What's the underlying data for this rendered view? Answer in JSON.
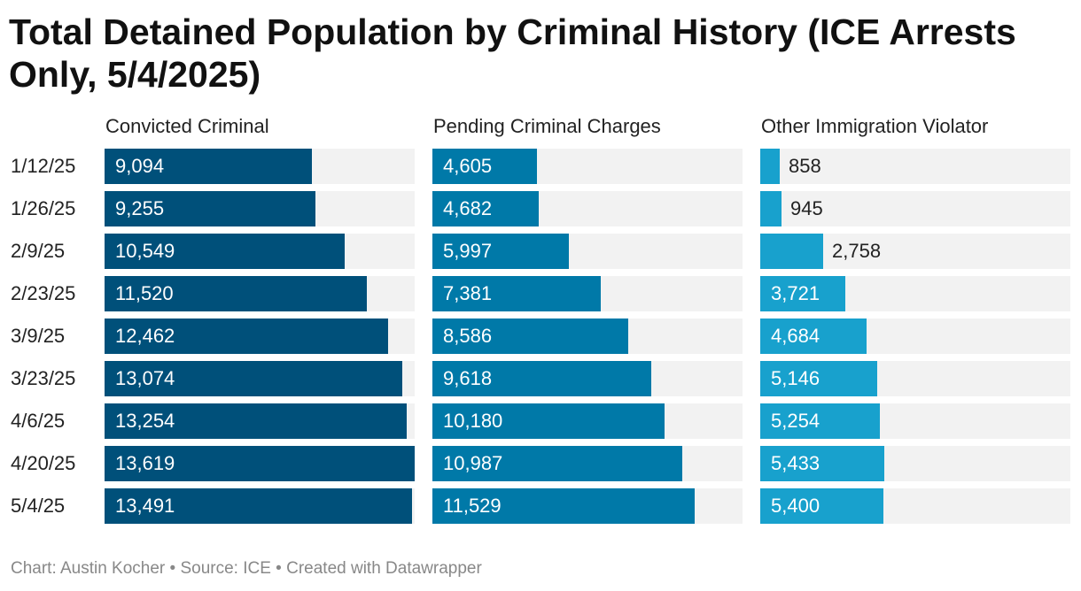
{
  "chart_data": {
    "type": "bar",
    "title": "Total Detained Population by Criminal History (ICE Arrests Only, 5/4/2025)",
    "orientation": "horizontal",
    "categories": [
      "1/12/25",
      "1/26/25",
      "2/9/25",
      "2/23/25",
      "3/9/25",
      "3/23/25",
      "4/6/25",
      "4/20/25",
      "5/4/25"
    ],
    "series": [
      {
        "name": "Convicted Criminal",
        "color": "#00507a",
        "values": [
          9094,
          9255,
          10549,
          11520,
          12462,
          13074,
          13254,
          13619,
          13491
        ],
        "value_labels": [
          "9,094",
          "9,255",
          "10,549",
          "11,520",
          "12,462",
          "13,074",
          "13,254",
          "13,619",
          "13,491"
        ]
      },
      {
        "name": "Pending Criminal Charges",
        "color": "#0079a8",
        "values": [
          4605,
          4682,
          5997,
          7381,
          8586,
          9618,
          10180,
          10987,
          11529
        ],
        "value_labels": [
          "4,605",
          "4,682",
          "5,997",
          "7,381",
          "8,586",
          "9,618",
          "10,180",
          "10,987",
          "11,529"
        ]
      },
      {
        "name": "Other Immigration Violator",
        "color": "#18a1cd",
        "values": [
          858,
          945,
          2758,
          3721,
          4684,
          5146,
          5254,
          5433,
          5400
        ],
        "value_labels": [
          "858",
          "945",
          "2,758",
          "3,721",
          "4,684",
          "5,146",
          "5,254",
          "5,433",
          "5,400"
        ]
      }
    ],
    "xlim": [
      0,
      13619
    ],
    "shared_scale": true,
    "grid": false,
    "track_color": "#f2f2f2"
  },
  "footer": "Chart: Austin Kocher • Source: ICE • Created with Datawrapper"
}
